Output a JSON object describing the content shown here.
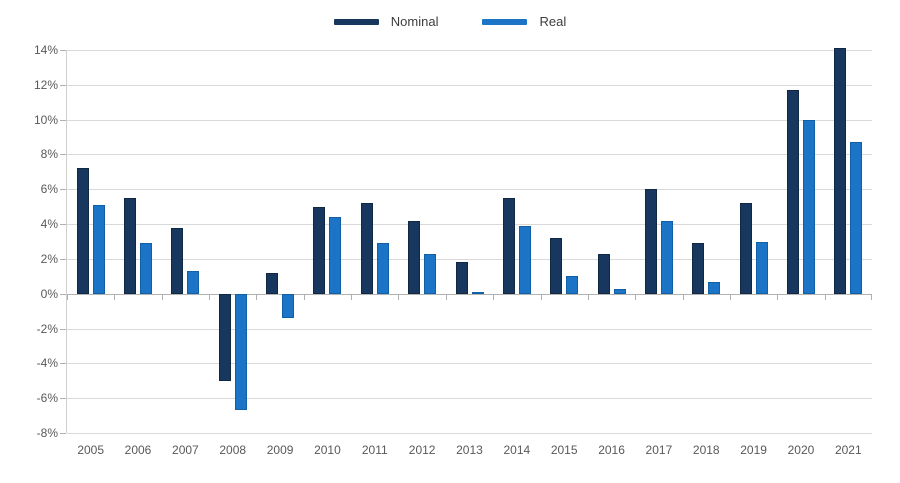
{
  "legend": {
    "items": [
      {
        "label": "Nominal",
        "color": "#17375e"
      },
      {
        "label": "Real",
        "color": "#1b74c6"
      }
    ]
  },
  "chart_data": {
    "type": "bar",
    "title": "",
    "xlabel": "",
    "ylabel": "",
    "categories": [
      "2005",
      "2006",
      "2007",
      "2008",
      "2009",
      "2010",
      "2011",
      "2012",
      "2013",
      "2014",
      "2015",
      "2016",
      "2017",
      "2018",
      "2019",
      "2020",
      "2021"
    ],
    "series": [
      {
        "name": "Nominal",
        "color": "#17375e",
        "border_color": "#102842",
        "values": [
          7.2,
          5.5,
          3.8,
          -5.0,
          1.2,
          5.0,
          5.2,
          4.2,
          1.8,
          5.5,
          3.2,
          2.3,
          6.0,
          2.9,
          5.2,
          11.7,
          14.1
        ]
      },
      {
        "name": "Real",
        "color": "#1b74c6",
        "border_color": "#115fa6",
        "values": [
          5.1,
          2.9,
          1.3,
          -6.7,
          -1.4,
          4.4,
          2.9,
          2.3,
          0.1,
          3.9,
          1.0,
          0.3,
          4.2,
          0.7,
          3.0,
          10.0,
          8.7
        ]
      }
    ],
    "ylim": [
      -8,
      14
    ],
    "ytick_step": 2,
    "ytick_labels": [
      "14%",
      "12%",
      "10%",
      "8%",
      "6%",
      "4%",
      "2%",
      "0%",
      "-2%",
      "-4%",
      "-6%",
      "-8%"
    ],
    "grid": true,
    "legend_position": "top-center",
    "style": {
      "gridline_color": "#d9d9d9",
      "zero_line_color": "#b3b3b3",
      "axis_line_color": "#cfcfcf",
      "tick_color": "#b0b0b0",
      "label_color": "#595959"
    }
  }
}
